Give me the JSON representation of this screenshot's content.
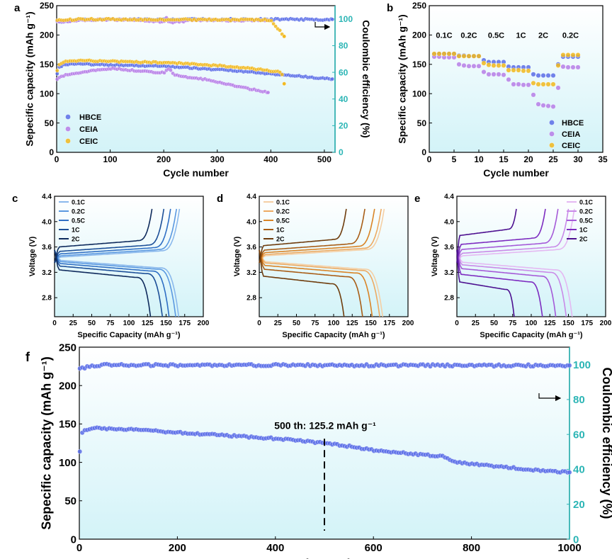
{
  "colors": {
    "blue": "#5b6ee8",
    "purple": "#b77ee8",
    "orange": "#f2b91e",
    "teal": "#2bb5b5",
    "plot_bg_top": "#ffffff",
    "plot_bg_bottom": "#d3f3f8",
    "axis": "#000000"
  },
  "chart_data": [
    {
      "id": "a",
      "panel_label": "a",
      "type": "scatter",
      "xlabel": "Cycle number",
      "ylabel": "Sepecific capacity (mAh g⁻¹)",
      "y2label": "Coulombic efficiency (%)",
      "xlim": [
        0,
        520
      ],
      "ylim": [
        0,
        250
      ],
      "y2lim": [
        0,
        110
      ],
      "xticks": [
        0,
        100,
        200,
        300,
        400,
        500
      ],
      "yticks": [
        0,
        50,
        100,
        150,
        200,
        250
      ],
      "y2ticks": [
        0,
        20,
        40,
        60,
        80,
        100
      ],
      "legend": [
        "HBCE",
        "CEIA",
        "CEIC"
      ],
      "legend_position": "bottom-left",
      "arrow_direction": "right",
      "series": [
        {
          "name": "HBCE",
          "color_key": "blue",
          "axis": "left",
          "x": [
            1,
            5,
            10,
            20,
            40,
            60,
            100,
            150,
            200,
            250,
            300,
            350,
            400,
            450,
            500,
            515
          ],
          "y": [
            135,
            145,
            148,
            150,
            151,
            150,
            149,
            148,
            147,
            144,
            141,
            138,
            134,
            130,
            126,
            125
          ]
        },
        {
          "name": "CEIA",
          "color_key": "purple",
          "axis": "left",
          "x": [
            1,
            10,
            30,
            60,
            100,
            130,
            160,
            200,
            210,
            220,
            250,
            280,
            300,
            320,
            350,
            380,
            395
          ],
          "y": [
            125,
            130,
            134,
            138,
            143,
            141,
            138,
            136,
            142,
            132,
            127,
            124,
            120,
            116,
            110,
            105,
            102
          ]
        },
        {
          "name": "CEIC",
          "color_key": "orange",
          "axis": "left",
          "x": [
            1,
            5,
            10,
            20,
            40,
            60,
            100,
            150,
            200,
            250,
            300,
            350,
            400,
            420,
            425
          ],
          "y": [
            140,
            150,
            153,
            155,
            156,
            156,
            155,
            154,
            153,
            151,
            148,
            144,
            139,
            137,
            117
          ]
        },
        {
          "name": "HBCE CE",
          "color_key": "blue",
          "axis": "right",
          "x": [
            1,
            50,
            100,
            150,
            200,
            250,
            300,
            350,
            400,
            450,
            500,
            515
          ],
          "y": [
            98,
            99.5,
            99.6,
            99.6,
            99.6,
            99.7,
            99.7,
            99.7,
            99.7,
            99.7,
            99.7,
            99.7
          ]
        },
        {
          "name": "CEIA CE",
          "color_key": "purple",
          "axis": "right",
          "x": [
            1,
            50,
            100,
            150,
            200,
            205,
            210,
            250,
            300,
            350,
            395
          ],
          "y": [
            98,
            99.2,
            99.4,
            99.3,
            98,
            101,
            97,
            99.2,
            99.1,
            99.0,
            99.0
          ]
        },
        {
          "name": "CEIC CE",
          "color_key": "orange",
          "axis": "right",
          "x": [
            1,
            50,
            100,
            150,
            200,
            250,
            300,
            350,
            400,
            425
          ],
          "y": [
            99,
            99.8,
            99.8,
            99.7,
            99.6,
            99.5,
            99.4,
            99.3,
            99.2,
            87
          ]
        }
      ]
    },
    {
      "id": "b",
      "panel_label": "b",
      "type": "scatter",
      "xlabel": "Cycle number",
      "ylabel": "Specific capacity (mAh g⁻¹)",
      "xlim": [
        0,
        35
      ],
      "ylim": [
        0,
        250
      ],
      "xticks": [
        0,
        5,
        10,
        15,
        20,
        25,
        30,
        35
      ],
      "yticks": [
        0,
        50,
        100,
        150,
        200,
        250
      ],
      "legend": [
        "HBCE",
        "CEIA",
        "CEIC"
      ],
      "legend_position": "bottom-right",
      "rate_labels": [
        {
          "text": "0.1C",
          "x": 3,
          "y": 200
        },
        {
          "text": "0.2C",
          "x": 8,
          "y": 200
        },
        {
          "text": "0.5C",
          "x": 13.5,
          "y": 200
        },
        {
          "text": "1C",
          "x": 18.5,
          "y": 200
        },
        {
          "text": "2C",
          "x": 23,
          "y": 200
        },
        {
          "text": "0.2C",
          "x": 28.5,
          "y": 200
        }
      ],
      "series": [
        {
          "name": "HBCE",
          "color_key": "blue",
          "values": [
            167,
            168,
            168,
            168,
            168,
            165,
            165,
            164,
            164,
            164,
            157,
            154,
            154,
            154,
            154,
            146,
            145,
            145,
            145,
            145,
            133,
            131,
            131,
            131,
            131,
            150,
            163,
            163,
            163,
            163
          ]
        },
        {
          "name": "CEIA",
          "color_key": "purple",
          "values": [
            163,
            163,
            162,
            162,
            162,
            150,
            148,
            147,
            147,
            147,
            137,
            133,
            133,
            133,
            132,
            124,
            116,
            116,
            115,
            115,
            98,
            82,
            80,
            79,
            78,
            110,
            146,
            145,
            145,
            145
          ]
        },
        {
          "name": "CEIC",
          "color_key": "orange",
          "values": [
            168,
            168,
            168,
            168,
            168,
            164,
            164,
            164,
            164,
            164,
            152,
            149,
            148,
            148,
            148,
            140,
            140,
            140,
            139,
            139,
            118,
            116,
            116,
            116,
            116,
            148,
            166,
            166,
            166,
            166
          ]
        }
      ]
    },
    {
      "id": "c",
      "panel_label": "c",
      "type": "line",
      "xlabel": "Specific Capacity (mAh g⁻¹)",
      "ylabel": "Voltage (V)",
      "xlim": [
        0,
        200
      ],
      "ylim": [
        2.5,
        4.4
      ],
      "xticks": [
        0,
        25,
        50,
        75,
        100,
        125,
        150,
        175,
        200
      ],
      "yticks": [
        2.8,
        3.2,
        3.6,
        4.0,
        4.4
      ],
      "ytick_labels": [
        "2.8",
        "3.2",
        "3.6",
        "4.0",
        "4.4"
      ],
      "legend_position": "top-left",
      "series": [
        {
          "name": "0.1C",
          "color": "#8ab8ec",
          "charge_cap": 168,
          "discharge_cap": 167,
          "charge_plateau": 3.44,
          "discharge_plateau": 3.39
        },
        {
          "name": "0.2C",
          "color": "#5a98e0",
          "charge_cap": 164,
          "discharge_cap": 163,
          "charge_plateau": 3.46,
          "discharge_plateau": 3.37
        },
        {
          "name": "0.5C",
          "color": "#2f6fc4",
          "charge_cap": 156,
          "discharge_cap": 154,
          "charge_plateau": 3.49,
          "discharge_plateau": 3.34
        },
        {
          "name": "1C",
          "color": "#1c4f98",
          "charge_cap": 147,
          "discharge_cap": 145,
          "charge_plateau": 3.53,
          "discharge_plateau": 3.3
        },
        {
          "name": "2C",
          "color": "#0e2a5c",
          "charge_cap": 131,
          "discharge_cap": 129,
          "charge_plateau": 3.6,
          "discharge_plateau": 3.24
        }
      ]
    },
    {
      "id": "d",
      "panel_label": "d",
      "type": "line",
      "xlabel": "Specific Capacity (mAh g⁻¹)",
      "ylabel": "Voltage (V)",
      "xlim": [
        0,
        200
      ],
      "ylim": [
        2.5,
        4.4
      ],
      "xticks": [
        0,
        25,
        50,
        75,
        100,
        125,
        150,
        175,
        200
      ],
      "yticks": [
        2.8,
        3.2,
        3.6,
        4.0,
        4.4
      ],
      "ytick_labels": [
        "2.8",
        "3.2",
        "3.6",
        "4.0",
        "4.4"
      ],
      "legend_position": "top-left",
      "series": [
        {
          "name": "0.1C",
          "color": "#f5cfa4",
          "charge_cap": 168,
          "discharge_cap": 166,
          "charge_plateau": 3.46,
          "discharge_plateau": 3.37
        },
        {
          "name": "0.2C",
          "color": "#edaa62",
          "charge_cap": 164,
          "discharge_cap": 162,
          "charge_plateau": 3.48,
          "discharge_plateau": 3.35
        },
        {
          "name": "0.5C",
          "color": "#d98426",
          "charge_cap": 155,
          "discharge_cap": 152,
          "charge_plateau": 3.51,
          "discharge_plateau": 3.31
        },
        {
          "name": "1C",
          "color": "#a85d16",
          "charge_cap": 142,
          "discharge_cap": 139,
          "charge_plateau": 3.55,
          "discharge_plateau": 3.25
        },
        {
          "name": "2C",
          "color": "#6e3c0c",
          "charge_cap": 117,
          "discharge_cap": 114,
          "charge_plateau": 3.62,
          "discharge_plateau": 3.14
        }
      ]
    },
    {
      "id": "e",
      "panel_label": "e",
      "type": "line",
      "xlabel": "Specific Capacity (mAh g⁻¹)",
      "ylabel": "Voltage (V)",
      "xlim": [
        0,
        200
      ],
      "ylim": [
        2.5,
        4.4
      ],
      "xticks": [
        0,
        25,
        50,
        75,
        100,
        125,
        150,
        175,
        200
      ],
      "yticks": [
        2.8,
        3.2,
        3.6,
        4.0,
        4.4
      ],
      "ytick_labels": [
        "2.8",
        "3.2",
        "3.6",
        "4.0",
        "4.4"
      ],
      "legend_position": "top-right",
      "series": [
        {
          "name": "0.1C",
          "color": "#e4b8f2",
          "charge_cap": 158,
          "discharge_cap": 155,
          "charge_plateau": 3.46,
          "discharge_plateau": 3.36
        },
        {
          "name": "0.2C",
          "color": "#c98ae8",
          "charge_cap": 150,
          "discharge_cap": 147,
          "charge_plateau": 3.5,
          "discharge_plateau": 3.32
        },
        {
          "name": "0.5C",
          "color": "#a55ad8",
          "charge_cap": 136,
          "discharge_cap": 133,
          "charge_plateau": 3.56,
          "discharge_plateau": 3.26
        },
        {
          "name": "1C",
          "color": "#7d2cc0",
          "charge_cap": 119,
          "discharge_cap": 115,
          "charge_plateau": 3.64,
          "discharge_plateau": 3.17
        },
        {
          "name": "2C",
          "color": "#4d1090",
          "charge_cap": 80,
          "discharge_cap": 77,
          "charge_plateau": 3.78,
          "discharge_plateau": 3.05
        }
      ]
    },
    {
      "id": "f",
      "panel_label": "f",
      "type": "scatter",
      "xlabel": "Cycle number",
      "ylabel": "Sepecific capacity (mAh g⁻¹)",
      "y2label": "Coulombic efficiency (%)",
      "xlim": [
        0,
        1000
      ],
      "ylim": [
        0,
        250
      ],
      "y2lim": [
        0,
        110
      ],
      "xticks": [
        0,
        200,
        400,
        600,
        800,
        1000
      ],
      "yticks": [
        0,
        50,
        100,
        150,
        200,
        250
      ],
      "y2ticks": [
        0,
        20,
        40,
        60,
        80,
        100
      ],
      "arrow_direction": "right",
      "annotation": {
        "text": "500 th: 125.2 mAh g⁻¹",
        "x": 500,
        "y": 125.2
      },
      "series": [
        {
          "name": "capacity",
          "color_key": "blue",
          "axis": "left",
          "x": [
            1,
            5,
            15,
            30,
            60,
            100,
            150,
            200,
            250,
            300,
            350,
            400,
            450,
            500,
            550,
            600,
            650,
            700,
            750,
            760,
            800,
            850,
            900,
            950,
            1000
          ],
          "y": [
            115,
            138,
            143,
            145,
            144,
            143,
            141,
            139,
            137,
            135,
            133,
            131,
            128,
            125.2,
            121,
            116,
            113,
            110,
            107,
            101,
            98,
            95,
            92,
            89,
            87
          ]
        },
        {
          "name": "CE",
          "color_key": "blue",
          "axis": "right",
          "x": [
            1,
            50,
            100,
            200,
            300,
            400,
            500,
            600,
            700,
            800,
            900,
            1000
          ],
          "y": [
            98,
            99.8,
            99.8,
            99.7,
            99.7,
            99.7,
            99.6,
            99.6,
            99.6,
            99.5,
            99.5,
            99.5
          ]
        }
      ]
    }
  ]
}
